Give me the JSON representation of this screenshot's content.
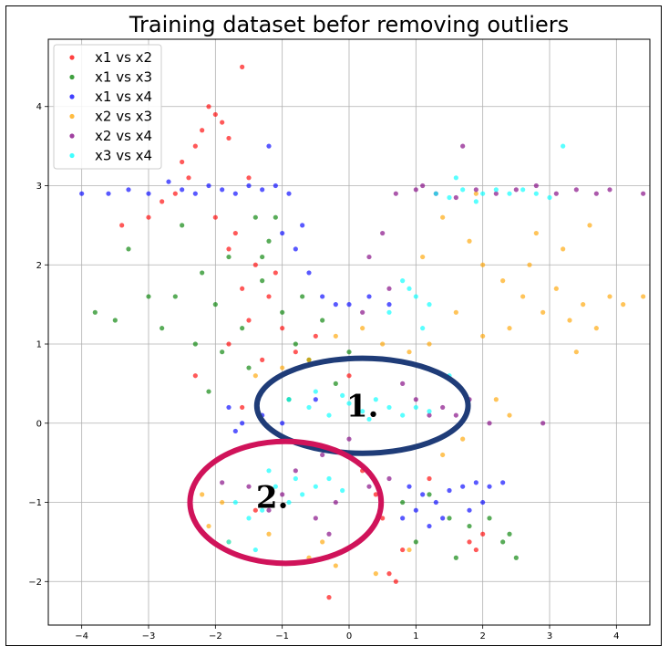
{
  "chart_data": {
    "type": "scatter",
    "title": "Training dataset befor removing outliers",
    "xlabel": "",
    "ylabel": "",
    "xlim": [
      -4.5,
      4.5
    ],
    "ylim": [
      -2.55,
      4.85
    ],
    "xticks": [
      -4,
      -3,
      -2,
      -1,
      0,
      1,
      2,
      3,
      4
    ],
    "yticks": [
      -2,
      -1,
      0,
      1,
      2,
      3,
      4
    ],
    "xtick_labels": [
      "−4",
      "−3",
      "−2",
      "−1",
      "0",
      "1",
      "2",
      "3",
      "4"
    ],
    "ytick_labels": [
      "−2",
      "−1",
      "0",
      "1",
      "2",
      "3",
      "4"
    ],
    "grid": true,
    "legend_position": "top-left",
    "series": [
      {
        "name": "x1 vs x2",
        "color": "#ff0000",
        "points": [
          [
            -2.1,
            4.0
          ],
          [
            -2.0,
            3.9
          ],
          [
            -1.6,
            4.5
          ],
          [
            -2.2,
            3.7
          ],
          [
            -2.3,
            3.5
          ],
          [
            -1.9,
            3.8
          ],
          [
            -2.5,
            3.3
          ],
          [
            -1.8,
            3.6
          ],
          [
            -2.4,
            3.1
          ],
          [
            -2.8,
            2.8
          ],
          [
            -1.5,
            3.1
          ],
          [
            -2.0,
            2.6
          ],
          [
            -1.8,
            2.2
          ],
          [
            -1.4,
            2.0
          ],
          [
            -1.6,
            1.7
          ],
          [
            -1.2,
            1.6
          ],
          [
            -1.5,
            1.3
          ],
          [
            -1.0,
            1.2
          ],
          [
            -1.8,
            1.0
          ],
          [
            -1.3,
            0.8
          ],
          [
            -0.8,
            0.9
          ],
          [
            -0.5,
            1.1
          ],
          [
            -2.3,
            0.6
          ],
          [
            -1.6,
            0.2
          ],
          [
            0.2,
            -0.6
          ],
          [
            0.5,
            -1.2
          ],
          [
            0.8,
            -1.6
          ],
          [
            0.7,
            -2.0
          ],
          [
            0.6,
            -1.9
          ],
          [
            1.8,
            -1.5
          ],
          [
            2.0,
            -1.4
          ],
          [
            1.9,
            -1.6
          ],
          [
            1.2,
            -0.7
          ],
          [
            -0.3,
            -2.2
          ],
          [
            -1.4,
            -1.1
          ],
          [
            -3.0,
            2.6
          ],
          [
            -3.4,
            2.5
          ],
          [
            -2.6,
            2.9
          ],
          [
            -1.7,
            2.4
          ],
          [
            -1.1,
            1.9
          ],
          [
            0.0,
            0.6
          ],
          [
            0.4,
            -0.9
          ]
        ]
      },
      {
        "name": "x1 vs x3",
        "color": "#008000",
        "points": [
          [
            -3.3,
            2.2
          ],
          [
            -3.0,
            1.6
          ],
          [
            -2.8,
            1.2
          ],
          [
            -2.5,
            2.5
          ],
          [
            -2.2,
            1.9
          ],
          [
            -2.0,
            1.5
          ],
          [
            -1.8,
            2.1
          ],
          [
            -1.6,
            1.2
          ],
          [
            -1.4,
            2.6
          ],
          [
            -1.2,
            2.3
          ],
          [
            -1.3,
            1.8
          ],
          [
            -1.0,
            1.4
          ],
          [
            -0.8,
            1.0
          ],
          [
            -0.6,
            0.8
          ],
          [
            -0.4,
            1.3
          ],
          [
            -0.2,
            0.5
          ],
          [
            0.0,
            0.9
          ],
          [
            -1.5,
            0.7
          ],
          [
            -2.3,
            1.0
          ],
          [
            -2.1,
            0.4
          ],
          [
            -3.5,
            1.3
          ],
          [
            1.2,
            -0.9
          ],
          [
            1.5,
            -1.2
          ],
          [
            1.8,
            -1.3
          ],
          [
            2.1,
            -1.2
          ],
          [
            2.3,
            -1.5
          ],
          [
            2.5,
            -1.7
          ],
          [
            1.0,
            -1.5
          ],
          [
            0.8,
            -1.0
          ],
          [
            -3.8,
            1.4
          ],
          [
            -1.1,
            2.6
          ],
          [
            -1.3,
            2.1
          ],
          [
            -0.7,
            1.6
          ],
          [
            2.4,
            -1.4
          ],
          [
            1.6,
            -1.7
          ],
          [
            -1.9,
            0.9
          ],
          [
            -2.6,
            1.6
          ],
          [
            -0.9,
            0.3
          ]
        ]
      },
      {
        "name": "x1 vs x4",
        "color": "#0000ff",
        "points": [
          [
            -4.0,
            2.9
          ],
          [
            -3.3,
            2.95
          ],
          [
            -3.0,
            2.9
          ],
          [
            -2.7,
            3.05
          ],
          [
            -2.5,
            2.95
          ],
          [
            -2.3,
            2.9
          ],
          [
            -2.1,
            3.0
          ],
          [
            -1.9,
            2.95
          ],
          [
            -1.7,
            2.9
          ],
          [
            -1.5,
            3.0
          ],
          [
            -1.3,
            2.95
          ],
          [
            -1.1,
            3.0
          ],
          [
            -0.9,
            2.9
          ],
          [
            -1.2,
            3.5
          ],
          [
            -1.0,
            2.4
          ],
          [
            -0.8,
            2.2
          ],
          [
            -0.6,
            1.9
          ],
          [
            -0.4,
            1.6
          ],
          [
            -0.2,
            1.5
          ],
          [
            0.0,
            1.5
          ],
          [
            0.3,
            1.6
          ],
          [
            0.6,
            1.5
          ],
          [
            -1.8,
            0.2
          ],
          [
            -1.6,
            0.0
          ],
          [
            -1.3,
            0.1
          ],
          [
            -1.0,
            0.0
          ],
          [
            0.9,
            -0.8
          ],
          [
            1.1,
            -0.9
          ],
          [
            1.3,
            -1.0
          ],
          [
            1.5,
            -0.85
          ],
          [
            1.7,
            -0.8
          ],
          [
            1.9,
            -0.75
          ],
          [
            2.1,
            -0.8
          ],
          [
            2.3,
            -0.75
          ],
          [
            1.0,
            -1.1
          ],
          [
            0.8,
            -1.2
          ],
          [
            1.2,
            -1.3
          ],
          [
            1.8,
            -1.1
          ],
          [
            -1.7,
            -0.1
          ],
          [
            -0.5,
            0.3
          ],
          [
            -3.6,
            2.9
          ],
          [
            -0.7,
            2.5
          ],
          [
            2.0,
            -1.0
          ],
          [
            1.4,
            -1.2
          ]
        ]
      },
      {
        "name": "x2 vs x3",
        "color": "#ffa500",
        "points": [
          [
            1.4,
            2.6
          ],
          [
            1.8,
            2.3
          ],
          [
            2.0,
            2.0
          ],
          [
            2.3,
            1.8
          ],
          [
            2.6,
            1.6
          ],
          [
            2.9,
            1.4
          ],
          [
            3.1,
            1.7
          ],
          [
            3.3,
            1.3
          ],
          [
            3.5,
            1.5
          ],
          [
            3.7,
            1.2
          ],
          [
            3.9,
            1.6
          ],
          [
            4.1,
            1.5
          ],
          [
            4.4,
            1.6
          ],
          [
            3.2,
            2.2
          ],
          [
            2.8,
            2.4
          ],
          [
            2.4,
            1.2
          ],
          [
            2.0,
            1.1
          ],
          [
            1.6,
            1.4
          ],
          [
            1.2,
            1.0
          ],
          [
            0.9,
            0.9
          ],
          [
            0.5,
            1.0
          ],
          [
            0.2,
            1.2
          ],
          [
            -0.2,
            1.1
          ],
          [
            -0.6,
            0.8
          ],
          [
            -1.0,
            0.7
          ],
          [
            -1.4,
            0.6
          ],
          [
            2.2,
            0.3
          ],
          [
            2.4,
            0.1
          ],
          [
            1.7,
            -0.2
          ],
          [
            1.4,
            -0.4
          ],
          [
            -1.9,
            -1.0
          ],
          [
            -2.1,
            -1.3
          ],
          [
            -1.8,
            -1.5
          ],
          [
            -1.2,
            -1.4
          ],
          [
            -0.6,
            -1.7
          ],
          [
            -0.2,
            -1.8
          ],
          [
            0.4,
            -1.9
          ],
          [
            0.9,
            -1.6
          ],
          [
            -2.2,
            -0.9
          ],
          [
            3.4,
            0.9
          ],
          [
            3.6,
            2.5
          ],
          [
            1.9,
            2.9
          ],
          [
            1.1,
            2.1
          ],
          [
            2.7,
            2.0
          ],
          [
            -0.4,
            -1.5
          ]
        ]
      },
      {
        "name": "x2 vs x4",
        "color": "#800080",
        "points": [
          [
            0.7,
            2.9
          ],
          [
            1.0,
            2.95
          ],
          [
            1.3,
            2.9
          ],
          [
            1.6,
            2.85
          ],
          [
            1.9,
            2.95
          ],
          [
            2.2,
            2.9
          ],
          [
            2.5,
            2.95
          ],
          [
            2.8,
            3.0
          ],
          [
            3.1,
            2.9
          ],
          [
            3.4,
            2.95
          ],
          [
            3.7,
            2.9
          ],
          [
            3.9,
            2.95
          ],
          [
            4.4,
            2.9
          ],
          [
            1.1,
            3.0
          ],
          [
            0.5,
            2.4
          ],
          [
            0.3,
            2.1
          ],
          [
            0.6,
            1.7
          ],
          [
            0.2,
            1.4
          ],
          [
            0.8,
            0.5
          ],
          [
            1.0,
            0.3
          ],
          [
            1.2,
            0.1
          ],
          [
            1.4,
            0.2
          ],
          [
            1.6,
            0.1
          ],
          [
            2.1,
            0.0
          ],
          [
            2.9,
            0.0
          ],
          [
            0.0,
            -0.2
          ],
          [
            -0.4,
            -0.4
          ],
          [
            -0.8,
            -0.6
          ],
          [
            -1.0,
            -0.9
          ],
          [
            -1.2,
            -1.1
          ],
          [
            -1.5,
            -0.8
          ],
          [
            -1.9,
            -0.75
          ],
          [
            -0.5,
            -1.2
          ],
          [
            -0.2,
            -1.0
          ],
          [
            0.3,
            -0.8
          ],
          [
            0.6,
            -0.7
          ],
          [
            1.7,
            3.5
          ],
          [
            -0.3,
            -1.4
          ],
          [
            1.8,
            0.3
          ]
        ]
      },
      {
        "name": "x3 vs x4",
        "color": "#00ffff",
        "points": [
          [
            1.3,
            2.9
          ],
          [
            1.5,
            2.85
          ],
          [
            1.7,
            2.95
          ],
          [
            2.0,
            2.9
          ],
          [
            2.2,
            2.95
          ],
          [
            2.4,
            2.9
          ],
          [
            2.6,
            2.95
          ],
          [
            2.8,
            2.9
          ],
          [
            3.0,
            2.85
          ],
          [
            3.2,
            3.5
          ],
          [
            1.6,
            3.1
          ],
          [
            1.9,
            2.8
          ],
          [
            0.8,
            1.8
          ],
          [
            1.0,
            1.6
          ],
          [
            1.2,
            1.5
          ],
          [
            0.6,
            1.4
          ],
          [
            0.9,
            1.7
          ],
          [
            -0.9,
            0.3
          ],
          [
            -0.6,
            0.2
          ],
          [
            -0.3,
            0.1
          ],
          [
            0.0,
            0.25
          ],
          [
            0.2,
            0.15
          ],
          [
            0.4,
            0.3
          ],
          [
            0.6,
            0.2
          ],
          [
            0.8,
            0.1
          ],
          [
            1.0,
            0.2
          ],
          [
            1.2,
            0.15
          ],
          [
            -0.5,
            0.4
          ],
          [
            -0.1,
            0.35
          ],
          [
            0.3,
            0.05
          ],
          [
            -1.7,
            -1.0
          ],
          [
            -1.5,
            -1.2
          ],
          [
            -1.3,
            -1.1
          ],
          [
            -1.1,
            -0.8
          ],
          [
            -0.9,
            -1.0
          ],
          [
            -0.7,
            -0.9
          ],
          [
            -0.5,
            -0.8
          ],
          [
            -0.3,
            -0.7
          ],
          [
            -0.1,
            -0.85
          ],
          [
            -1.8,
            -1.5
          ],
          [
            -1.4,
            -1.6
          ],
          [
            -1.2,
            -0.6
          ],
          [
            -0.8,
            -0.7
          ],
          [
            1.5,
            0.6
          ],
          [
            1.1,
            1.2
          ]
        ]
      }
    ],
    "annotations": [
      {
        "label": "1.",
        "shape": "ellipse",
        "color": "#1f3c78",
        "cx": 0.2,
        "cy": 0.22,
        "rx": 1.58,
        "ry": 0.6,
        "label_x": 0.2,
        "label_y": 0.22
      },
      {
        "label": "2.",
        "shape": "ellipse",
        "color": "#d0135a",
        "cx": -0.95,
        "cy": -1.0,
        "rx": 1.43,
        "ry": 0.77,
        "label_x": -1.15,
        "label_y": -0.93
      }
    ]
  }
}
